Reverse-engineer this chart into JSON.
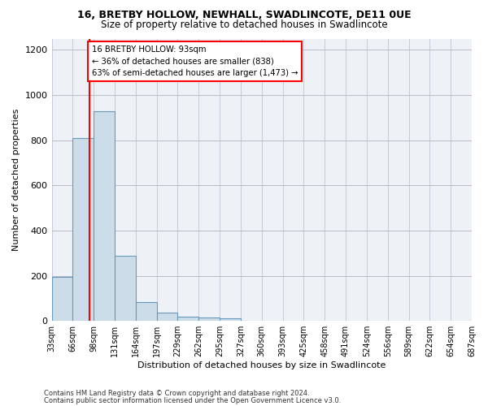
{
  "title": "16, BRETBY HOLLOW, NEWHALL, SWADLINCOTE, DE11 0UE",
  "subtitle": "Size of property relative to detached houses in Swadlincote",
  "xlabel": "Distribution of detached houses by size in Swadlincote",
  "ylabel": "Number of detached properties",
  "footnote1": "Contains HM Land Registry data © Crown copyright and database right 2024.",
  "footnote2": "Contains public sector information licensed under the Open Government Licence v3.0.",
  "annotation_line1": "16 BRETBY HOLLOW: 93sqm",
  "annotation_line2": "← 36% of detached houses are smaller (838)",
  "annotation_line3": "63% of semi-detached houses are larger (1,473) →",
  "bar_color": "#ccdce8",
  "bar_edge_color": "#6699bb",
  "red_line_x": 93,
  "bin_edges": [
    33,
    66,
    99,
    132,
    165,
    198,
    231,
    264,
    297,
    330,
    363,
    396,
    429,
    462,
    495,
    528,
    561,
    594,
    627,
    660,
    693
  ],
  "bin_labels": [
    "33sqm",
    "66sqm",
    "98sqm",
    "131sqm",
    "164sqm",
    "197sqm",
    "229sqm",
    "262sqm",
    "295sqm",
    "327sqm",
    "360sqm",
    "393sqm",
    "425sqm",
    "458sqm",
    "491sqm",
    "524sqm",
    "556sqm",
    "589sqm",
    "622sqm",
    "654sqm",
    "687sqm"
  ],
  "bar_heights": [
    195,
    810,
    930,
    290,
    85,
    35,
    20,
    15,
    10,
    0,
    0,
    0,
    0,
    0,
    0,
    0,
    0,
    0,
    0,
    0
  ],
  "ylim": [
    0,
    1250
  ],
  "yticks": [
    0,
    200,
    400,
    600,
    800,
    1000,
    1200
  ],
  "background_color": "#ffffff",
  "plot_bg_color": "#eef2f7",
  "grid_color": "#bbbbcc"
}
